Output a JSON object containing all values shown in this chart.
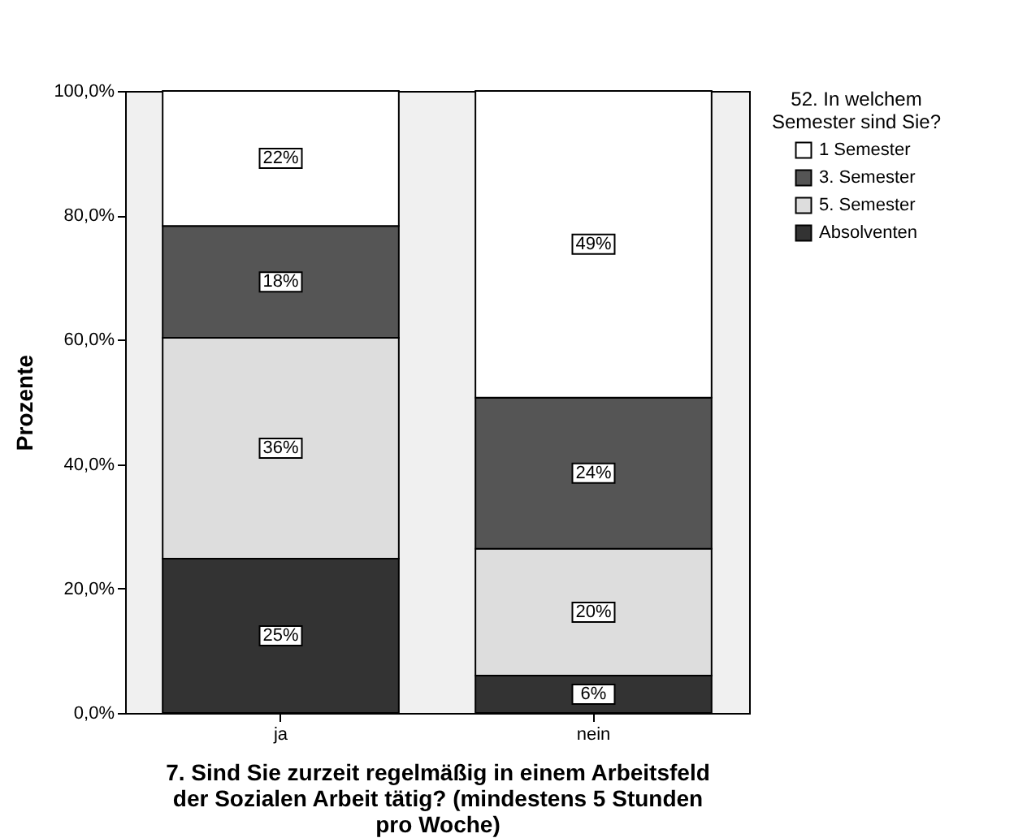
{
  "chart_data": {
    "type": "bar",
    "stacked": true,
    "xlabel": "7. Sind Sie zurzeit regelmäßig in einem Arbeitsfeld\nder Sozialen Arbeit tätig? (mindestens 5 Stunden\npro Woche)",
    "ylabel": "Prozente",
    "legend_title": "52. In welchem\nSemester sind Sie?",
    "legend": "top right",
    "categories": [
      "ja",
      "nein"
    ],
    "series": [
      {
        "name": "Absolventen",
        "color": "#333333",
        "values": [
          24.8,
          6.0
        ],
        "value_labels": [
          "25%",
          "6%"
        ]
      },
      {
        "name": "5. Semester",
        "color": "#dddddd",
        "values": [
          35.5,
          20.4
        ],
        "value_labels": [
          "36%",
          "20%"
        ]
      },
      {
        "name": "3. Semester",
        "color": "#555555",
        "values": [
          18.0,
          24.3
        ],
        "value_labels": [
          "18%",
          "24%"
        ]
      },
      {
        "name": "1 Semester",
        "color": "#ffffff",
        "values": [
          21.7,
          49.3
        ],
        "value_labels": [
          "22%",
          "49%"
        ]
      }
    ],
    "ylim": [
      0,
      100
    ],
    "yticks": [
      {
        "value": 0,
        "label": "0,0%"
      },
      {
        "value": 20,
        "label": "20,0%"
      },
      {
        "value": 40,
        "label": "40,0%"
      },
      {
        "value": 60,
        "label": "60,0%"
      },
      {
        "value": 80,
        "label": "80,0%"
      },
      {
        "value": 100,
        "label": "100,0%"
      }
    ]
  }
}
